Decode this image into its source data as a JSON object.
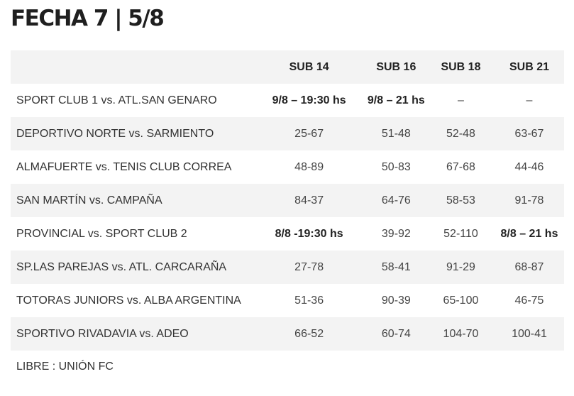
{
  "title": "FECHA 7 | 5/8",
  "columns": [
    "",
    "SUB 14",
    "SUB 16",
    "SUB 18",
    "SUB 21"
  ],
  "rows": [
    {
      "match": "SPORT CLUB 1 vs. ATL.SAN GENARO",
      "scores": [
        "9/8 – 19:30 hs",
        "9/8 – 21 hs",
        "–",
        "–"
      ],
      "bold": [
        true,
        true,
        false,
        false
      ]
    },
    {
      "match": "DEPORTIVO NORTE vs. SARMIENTO",
      "scores": [
        "25-67",
        "51-48",
        "52-48",
        "63-67"
      ],
      "bold": [
        false,
        false,
        false,
        false
      ]
    },
    {
      "match": "ALMAFUERTE vs. TENIS CLUB CORREA",
      "scores": [
        "48-89",
        "50-83",
        "67-68",
        "44-46"
      ],
      "bold": [
        false,
        false,
        false,
        false
      ]
    },
    {
      "match": "SAN MARTÍN vs. CAMPAÑA",
      "scores": [
        "84-37",
        "64-76",
        "58-53",
        "91-78"
      ],
      "bold": [
        false,
        false,
        false,
        false
      ]
    },
    {
      "match": "PROVINCIAL vs. SPORT CLUB 2",
      "scores": [
        "8/8 -19:30 hs",
        "39-92",
        "52-110",
        "8/8 – 21 hs"
      ],
      "bold": [
        true,
        false,
        false,
        true
      ]
    },
    {
      "match": "SP.LAS PAREJAS vs. ATL. CARCARAÑA",
      "scores": [
        "27-78",
        "58-41",
        "91-29",
        "68-87"
      ],
      "bold": [
        false,
        false,
        false,
        false
      ]
    },
    {
      "match": "TOTORAS JUNIORS vs. ALBA ARGENTINA",
      "scores": [
        "51-36",
        "90-39",
        "65-100",
        "46-75"
      ],
      "bold": [
        false,
        false,
        false,
        false
      ]
    },
    {
      "match": "SPORTIVO RIVADAVIA vs. ADEO",
      "scores": [
        "66-52",
        "60-74",
        "104-70",
        "100-41"
      ],
      "bold": [
        false,
        false,
        false,
        false
      ]
    }
  ],
  "footer": "LIBRE : UNIÓN FC"
}
